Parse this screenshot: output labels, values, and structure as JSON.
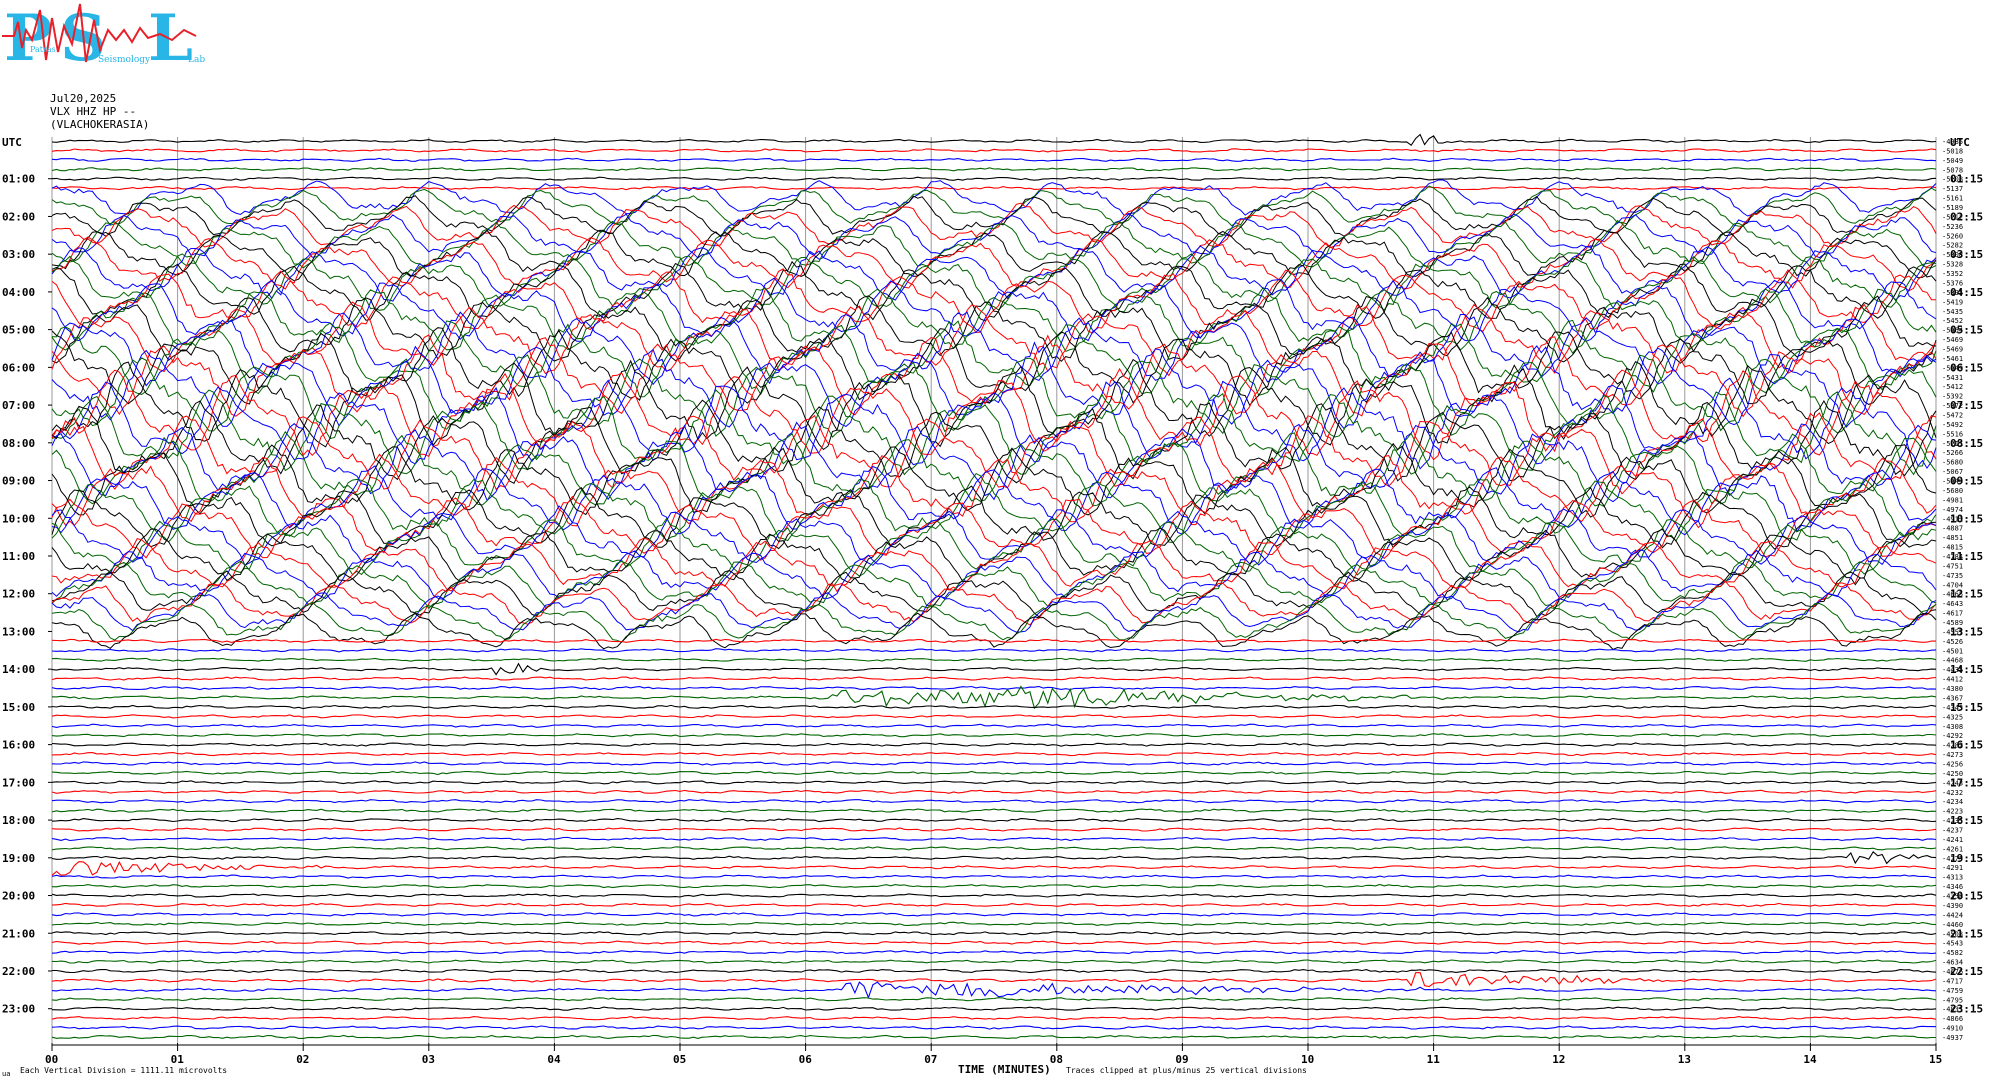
{
  "logo": {
    "letters": [
      "P",
      "S",
      "L"
    ],
    "small_words": [
      "Patras",
      "Seismology",
      "Lab"
    ]
  },
  "header": {
    "date": "Jul20,2025",
    "channel": "VLX HHZ HP --",
    "station": "(VLACHOKERASIA)"
  },
  "footer": {
    "corner_mark": "ua",
    "vertical_division": "Each Vertical Division = 1111.11 microvolts",
    "xaxis_title": "TIME (MINUTES)",
    "clip_note": "Traces clipped at plus/minus 25 vertical divisions"
  },
  "colors": {
    "trace_cycle": [
      "#000000",
      "#ff0000",
      "#0000ff",
      "#006400"
    ],
    "logo_cyan": "#29b6e6",
    "logo_red": "#e8202a",
    "grid": "#808080"
  },
  "chart_data": {
    "type": "line",
    "title": "",
    "xlabel": "TIME (MINUTES)",
    "ylabel": "",
    "x_range_minutes": [
      0,
      15
    ],
    "x_ticks": [
      "00",
      "01",
      "02",
      "03",
      "04",
      "05",
      "06",
      "07",
      "08",
      "09",
      "10",
      "11",
      "12",
      "13",
      "14",
      "15"
    ],
    "lines_per_hour": 4,
    "minutes_per_line": 15,
    "left_axis_title": "UTC",
    "right_axis_title": "UTC",
    "left_time_labels": [
      "01:00",
      "02:00",
      "03:00",
      "04:00",
      "05:00",
      "06:00",
      "07:00",
      "08:00",
      "09:00",
      "10:00",
      "11:00",
      "12:00",
      "13:00",
      "14:00",
      "15:00",
      "16:00",
      "17:00",
      "18:00",
      "19:00",
      "20:00",
      "21:00",
      "22:00",
      "23:00"
    ],
    "right_time_labels": [
      "01:15",
      "02:15",
      "03:15",
      "04:15",
      "05:15",
      "06:15",
      "07:15",
      "08:15",
      "09:15",
      "10:15",
      "11:15",
      "12:15",
      "13:15",
      "14:15",
      "15:15",
      "16:15",
      "17:15",
      "18:15",
      "19:15",
      "20:15",
      "21:15",
      "22:15",
      "23:15"
    ],
    "trace_offsets": [
      "-4985",
      "-5018",
      "-5049",
      "-5078",
      "-5108",
      "-5137",
      "-5161",
      "-5189",
      "-5212",
      "-5236",
      "-5260",
      "-5282",
      "-5308",
      "-5328",
      "-5352",
      "-5376",
      "-5395",
      "-5419",
      "-5435",
      "-5452",
      "-5464",
      "-5469",
      "-5469",
      "-5461",
      "-5449",
      "-5431",
      "-5412",
      "-5392",
      "-5372",
      "-5472",
      "-5492",
      "-5516",
      "-5211",
      "-5266",
      "-5680",
      "-5067",
      "-5449",
      "-5680",
      "-4981",
      "-4974",
      "-4911",
      "-4887",
      "-4851",
      "-4815",
      "-4784",
      "-4751",
      "-4735",
      "-4704",
      "-4665",
      "-4643",
      "-4617",
      "-4589",
      "-4557",
      "-4526",
      "-4501",
      "-4468",
      "-4435",
      "-4412",
      "-4380",
      "-4367",
      "-4343",
      "-4325",
      "-4308",
      "-4292",
      "-4282",
      "-4273",
      "-4256",
      "-4250",
      "-4243",
      "-4232",
      "-4234",
      "-4223",
      "-4235",
      "-4237",
      "-4241",
      "-4261",
      "-4275",
      "-4291",
      "-4313",
      "-4346",
      "-4358",
      "-4390",
      "-4424",
      "-4460",
      "-4503",
      "-4543",
      "-4582",
      "-4634",
      "-4676",
      "-4717",
      "-4759",
      "-4795",
      "-4831",
      "-4866",
      "-4910",
      "-4937"
    ],
    "vertical_division_microvolts": 1111.11,
    "clip_divisions": 25,
    "active_tremor_rows": [
      6,
      52
    ],
    "events": [
      {
        "row": 0,
        "start_min": 10.8,
        "end_min": 11.2
      },
      {
        "row": 56,
        "start_min": 3.4,
        "end_min": 4.0
      },
      {
        "row": 59,
        "start_min": 7.4,
        "end_min": 11.2
      },
      {
        "row": 59,
        "start_min": 6.2,
        "end_min": 10.0
      },
      {
        "row": 77,
        "start_min": 0.0,
        "end_min": 2.2
      },
      {
        "row": 76,
        "start_min": 14.3,
        "end_min": 15.0
      },
      {
        "row": 89,
        "start_min": 10.8,
        "end_min": 13.0
      },
      {
        "row": 90,
        "start_min": 6.3,
        "end_min": 11.0
      }
    ]
  }
}
